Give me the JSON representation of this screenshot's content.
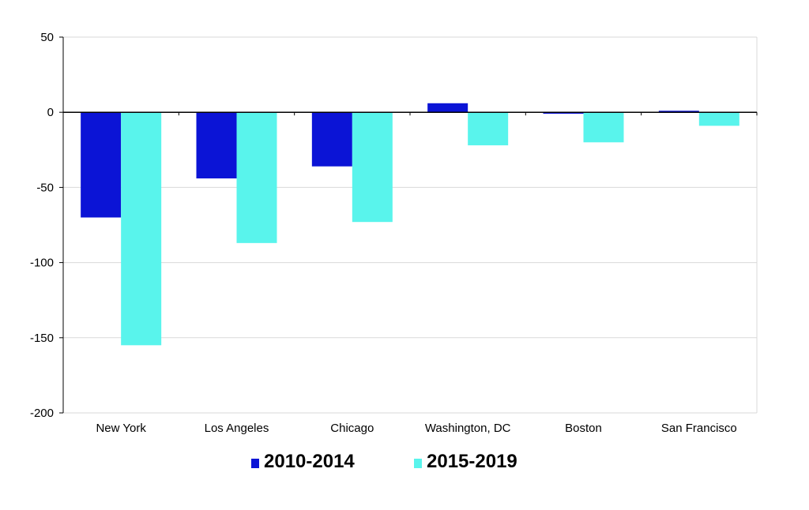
{
  "chart_data": {
    "type": "bar",
    "title": "",
    "xlabel": "",
    "ylabel": "",
    "categories": [
      "New York",
      "Los Angeles",
      "Chicago",
      "Washington, DC",
      "Boston",
      "San Francisco"
    ],
    "series": [
      {
        "name": "2010-2014",
        "color": "#0b14d6",
        "values": [
          -70,
          -44,
          -36,
          6,
          -1,
          1
        ]
      },
      {
        "name": "2015-2019",
        "color": "#59f4ec",
        "values": [
          -155,
          -87,
          -73,
          -22,
          -20,
          -9
        ]
      }
    ],
    "ylim": [
      -200,
      50
    ],
    "yticks": [
      50,
      0,
      -50,
      -100,
      -150,
      -200
    ],
    "grid": true,
    "legend_position": "bottom-center"
  }
}
